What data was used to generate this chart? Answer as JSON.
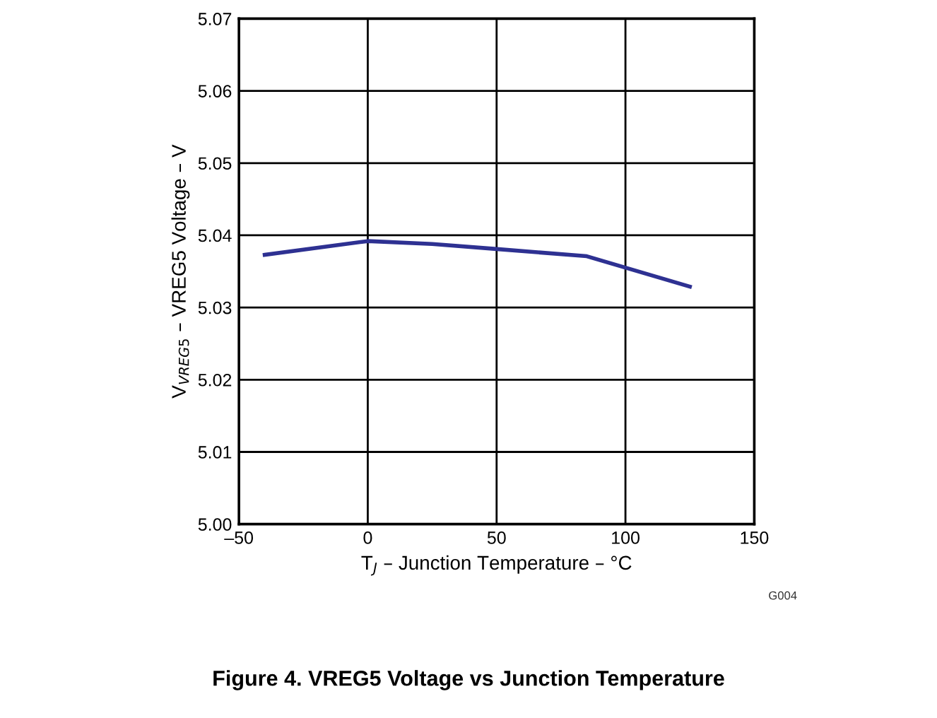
{
  "chart_data": {
    "type": "line",
    "title": "Figure 4. VREG5 Voltage vs Junction Temperature",
    "xlabel": "T$_{J}$ – Junction Temperature – °C",
    "ylabel": "V$_{VREG5}$ – VREG5 Voltage – V",
    "x": [
      -40,
      0,
      25,
      50,
      85,
      125
    ],
    "series": [
      {
        "color": "#2e3192",
        "values": [
          5.0373,
          5.0392,
          5.0388,
          5.0381,
          5.0371,
          5.0329
        ]
      }
    ],
    "xlim": [
      -50,
      150
    ],
    "xticks": [
      {
        "value": -50,
        "label": "–50"
      },
      0,
      50,
      100,
      150
    ],
    "ylim": [
      5.0,
      5.07
    ],
    "yticks": [
      {
        "value": 5.0,
        "label": "5.00"
      },
      5.01,
      5.02,
      5.03,
      5.04,
      5.05,
      5.06,
      5.07
    ],
    "grid": true,
    "marker": "none",
    "line_style": "solid",
    "annotations": [
      "G004"
    ]
  }
}
